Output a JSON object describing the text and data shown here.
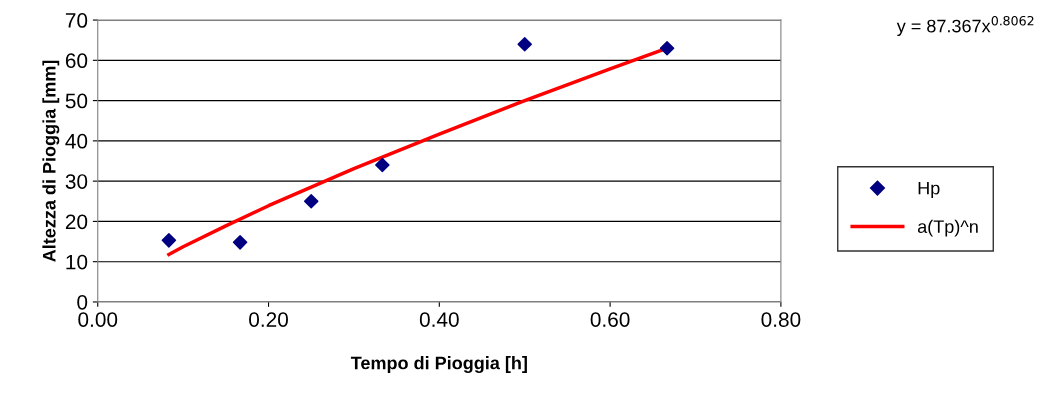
{
  "chart_data": {
    "type": "scatter",
    "xlabel": "Tempo di Pioggia [h]",
    "ylabel": "Altezza di Pioggia [mm]",
    "annotations": [
      "y = 87.367x$^{0.8062}$"
    ],
    "xlim": [
      0,
      0.8
    ],
    "xticks": [
      {
        "value": 0,
        "label": "0.00"
      },
      {
        "value": 0.2,
        "label": "0.20"
      },
      {
        "value": 0.4,
        "label": "0.40"
      },
      {
        "value": 0.6,
        "label": "0.60"
      },
      {
        "value": 0.8,
        "label": "0.80"
      }
    ],
    "ylim": [
      0,
      70
    ],
    "yticks": [
      0,
      10,
      20,
      30,
      40,
      50,
      60,
      70
    ],
    "grid": "y",
    "legend": "right",
    "series": [
      {
        "name": "Hp",
        "marker": "diamond",
        "color": "#000080",
        "x": [
          0.0833,
          0.1667,
          0.25,
          0.3333,
          0.5,
          0.6667
        ],
        "values": [
          15.3,
          14.8,
          25,
          34,
          64,
          63
        ]
      },
      {
        "name": "a(Tp)^n",
        "type": "line",
        "marker": "none",
        "color": "#ff0000",
        "x": [
          0.0833,
          0.1,
          0.15,
          0.2,
          0.3,
          0.4,
          0.5,
          0.6,
          0.6667
        ],
        "values": [
          11.8,
          13.7,
          18.9,
          23.9,
          33.1,
          41.7,
          50.0,
          57.9,
          63.0
        ]
      }
    ]
  }
}
